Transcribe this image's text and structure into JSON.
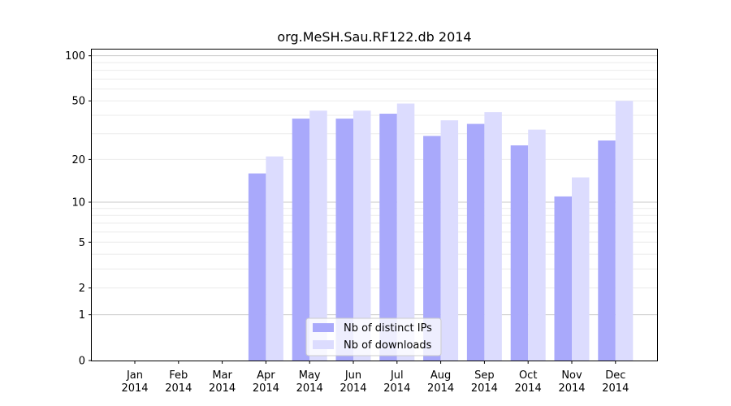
{
  "chart_data": {
    "type": "bar",
    "title": "org.MeSH.Sau.RF122.db 2014",
    "xlabel": "",
    "ylabel": "",
    "y_scale": "log(1+y)",
    "ylim": [
      0,
      110
    ],
    "categories": [
      [
        "Jan",
        "2014"
      ],
      [
        "Feb",
        "2014"
      ],
      [
        "Mar",
        "2014"
      ],
      [
        "Apr",
        "2014"
      ],
      [
        "May",
        "2014"
      ],
      [
        "Jun",
        "2014"
      ],
      [
        "Jul",
        "2014"
      ],
      [
        "Aug",
        "2014"
      ],
      [
        "Sep",
        "2014"
      ],
      [
        "Oct",
        "2014"
      ],
      [
        "Nov",
        "2014"
      ],
      [
        "Dec",
        "2014"
      ]
    ],
    "series": [
      {
        "name": "Nb of distinct IPs",
        "color": "#a9a9fb",
        "values": [
          0,
          0,
          0,
          16,
          38,
          38,
          41,
          29,
          35,
          25,
          11,
          27
        ]
      },
      {
        "name": "Nb of downloads",
        "color": "#dcdcfe",
        "values": [
          0,
          0,
          0,
          21,
          43,
          43,
          48,
          37,
          42,
          32,
          15,
          50
        ]
      }
    ],
    "y_ticks": [
      {
        "value": 0,
        "label": "0"
      },
      {
        "value": 1,
        "label": "1"
      },
      {
        "value": 2,
        "label": "2"
      },
      {
        "value": 5,
        "label": "5"
      },
      {
        "value": 10,
        "label": "10"
      },
      {
        "value": 20,
        "label": "20"
      },
      {
        "value": 50,
        "label": "50"
      },
      {
        "value": 100,
        "label": "100"
      }
    ],
    "major_grid": [
      1,
      10,
      100
    ],
    "minor_grid": [
      2,
      3,
      4,
      5,
      6,
      7,
      8,
      9,
      20,
      30,
      40,
      50,
      60,
      70,
      80,
      90
    ],
    "legend_position": "bottom-center",
    "grid": true
  }
}
